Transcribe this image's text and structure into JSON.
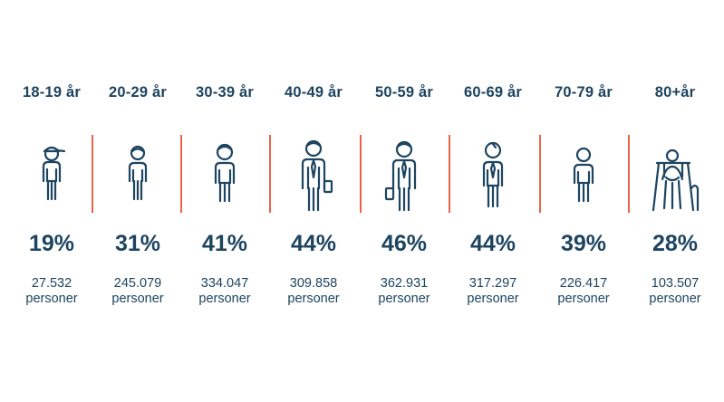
{
  "accent_color": "#e8644a",
  "text_color": "#1d4460",
  "groups": [
    {
      "age": "18-19 år",
      "percent": "19%",
      "count": "27.532",
      "unit": "personer",
      "icon": "youth-cap-icon"
    },
    {
      "age": "20-29 år",
      "percent": "31%",
      "count": "245.079",
      "unit": "personer",
      "icon": "young-adult-icon"
    },
    {
      "age": "30-39 år",
      "percent": "41%",
      "count": "334.047",
      "unit": "personer",
      "icon": "adult-icon"
    },
    {
      "age": "40-49 år",
      "percent": "44%",
      "count": "309.858",
      "unit": "personer",
      "icon": "businessman-briefcase-icon"
    },
    {
      "age": "50-59 år",
      "percent": "46%",
      "count": "362.931",
      "unit": "personer",
      "icon": "businessman-briefcase-icon"
    },
    {
      "age": "60-69 år",
      "percent": "44%",
      "count": "317.297",
      "unit": "personer",
      "icon": "senior-tie-icon"
    },
    {
      "age": "70-79 år",
      "percent": "39%",
      "count": "226.417",
      "unit": "personer",
      "icon": "elderly-person-icon"
    },
    {
      "age": "80+år",
      "percent": "28%",
      "count": "103.507",
      "unit": "personer",
      "icon": "elderly-walker-icon"
    }
  ]
}
